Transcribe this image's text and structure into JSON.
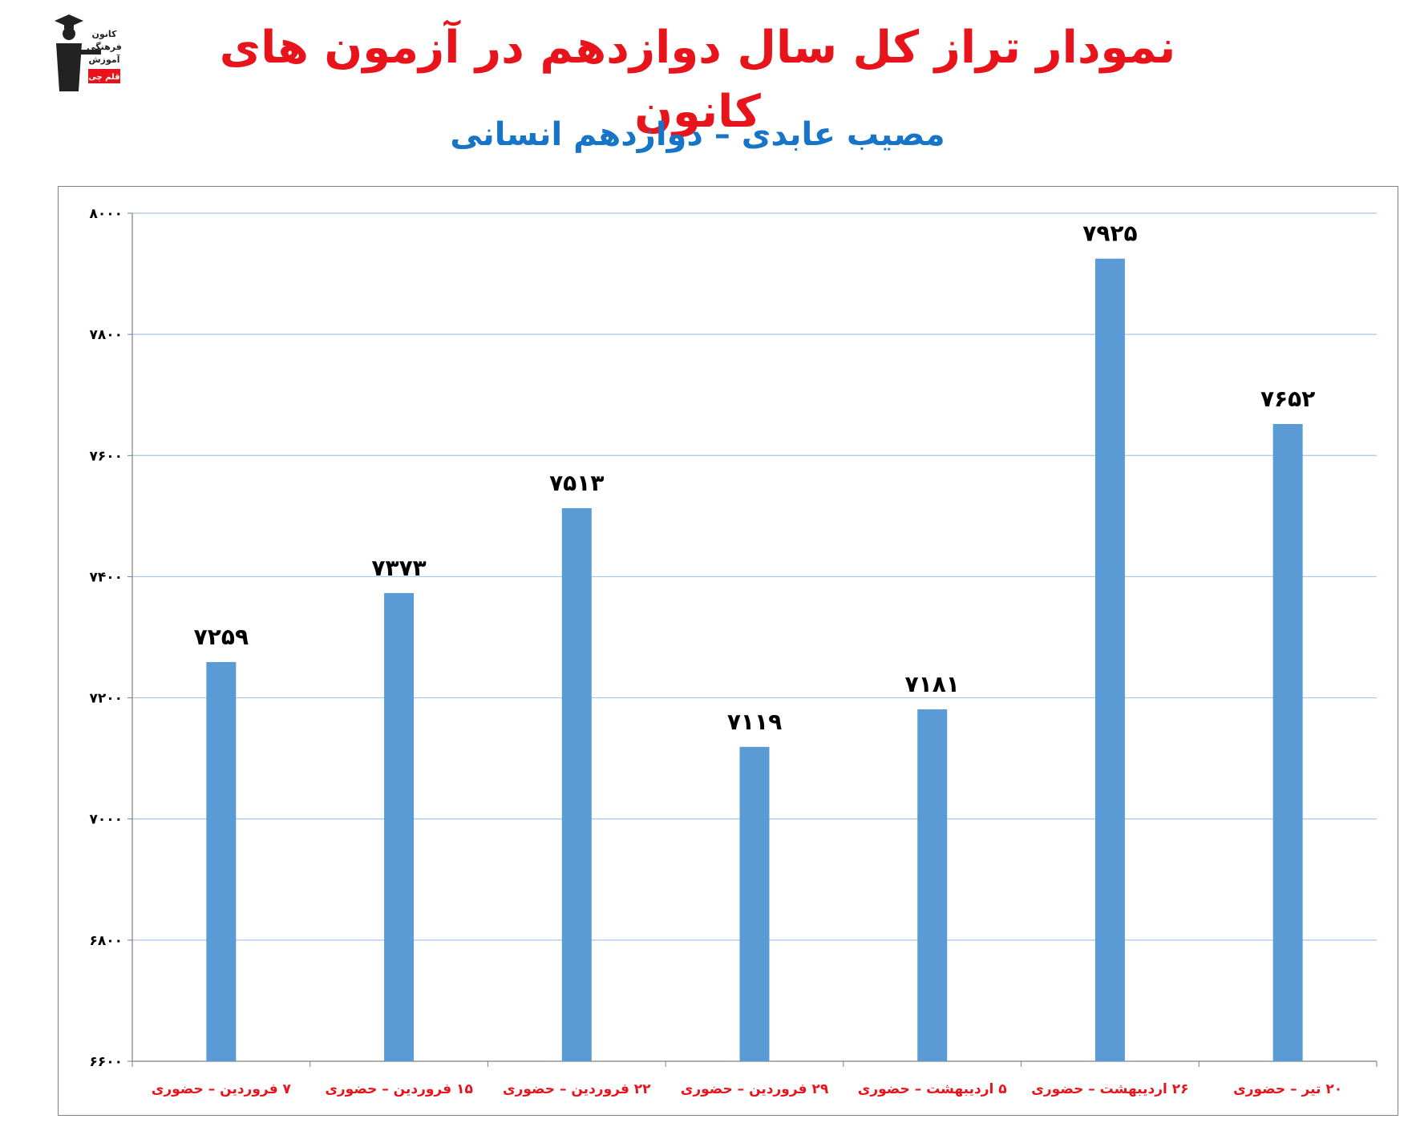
{
  "header": {
    "title": "نمودار تراز کل سال دوازدهم در آزمون های کانون",
    "subtitle": "مصیب عابدی – دوازدهم انسانی"
  },
  "logo": {
    "icon": "graduate-figure-icon",
    "lines": [
      "کانون",
      "فرهنگی",
      "آموزش",
      "قلم چی"
    ],
    "accent_color": "#e8141b"
  },
  "colors": {
    "title": "#e8141b",
    "subtitle": "#1874c7",
    "bar": "#5b9bd5",
    "gridline": "#a9c6e8",
    "x_label": "#e8141b"
  },
  "chart_data": {
    "type": "bar",
    "title": "",
    "xlabel": "",
    "ylabel": "",
    "categories": [
      "۷ فروردین – حضوری",
      "۱۵ فروردین – حضوری",
      "۲۲ فروردین – حضوری",
      "۲۹ فروردین – حضوری",
      "۵ اردیبهشت – حضوری",
      "۲۶ اردیبهشت – حضوری",
      "۲۰ تیر – حضوری"
    ],
    "values": [
      7259,
      7373,
      7513,
      7119,
      7181,
      7925,
      7652
    ],
    "value_labels": [
      "۷۲۵۹",
      "۷۳۷۳",
      "۷۵۱۳",
      "۷۱۱۹",
      "۷۱۸۱",
      "۷۹۲۵",
      "۷۶۵۲"
    ],
    "ylim": [
      6600,
      8000
    ],
    "yticks": [
      6600,
      6800,
      7000,
      7200,
      7400,
      7600,
      7800,
      8000
    ],
    "ytick_labels": [
      "۶۶۰۰",
      "۶۸۰۰",
      "۷۰۰۰",
      "۷۲۰۰",
      "۷۴۰۰",
      "۷۶۰۰",
      "۷۸۰۰",
      "۸۰۰۰"
    ],
    "grid": true,
    "legend": "none"
  }
}
